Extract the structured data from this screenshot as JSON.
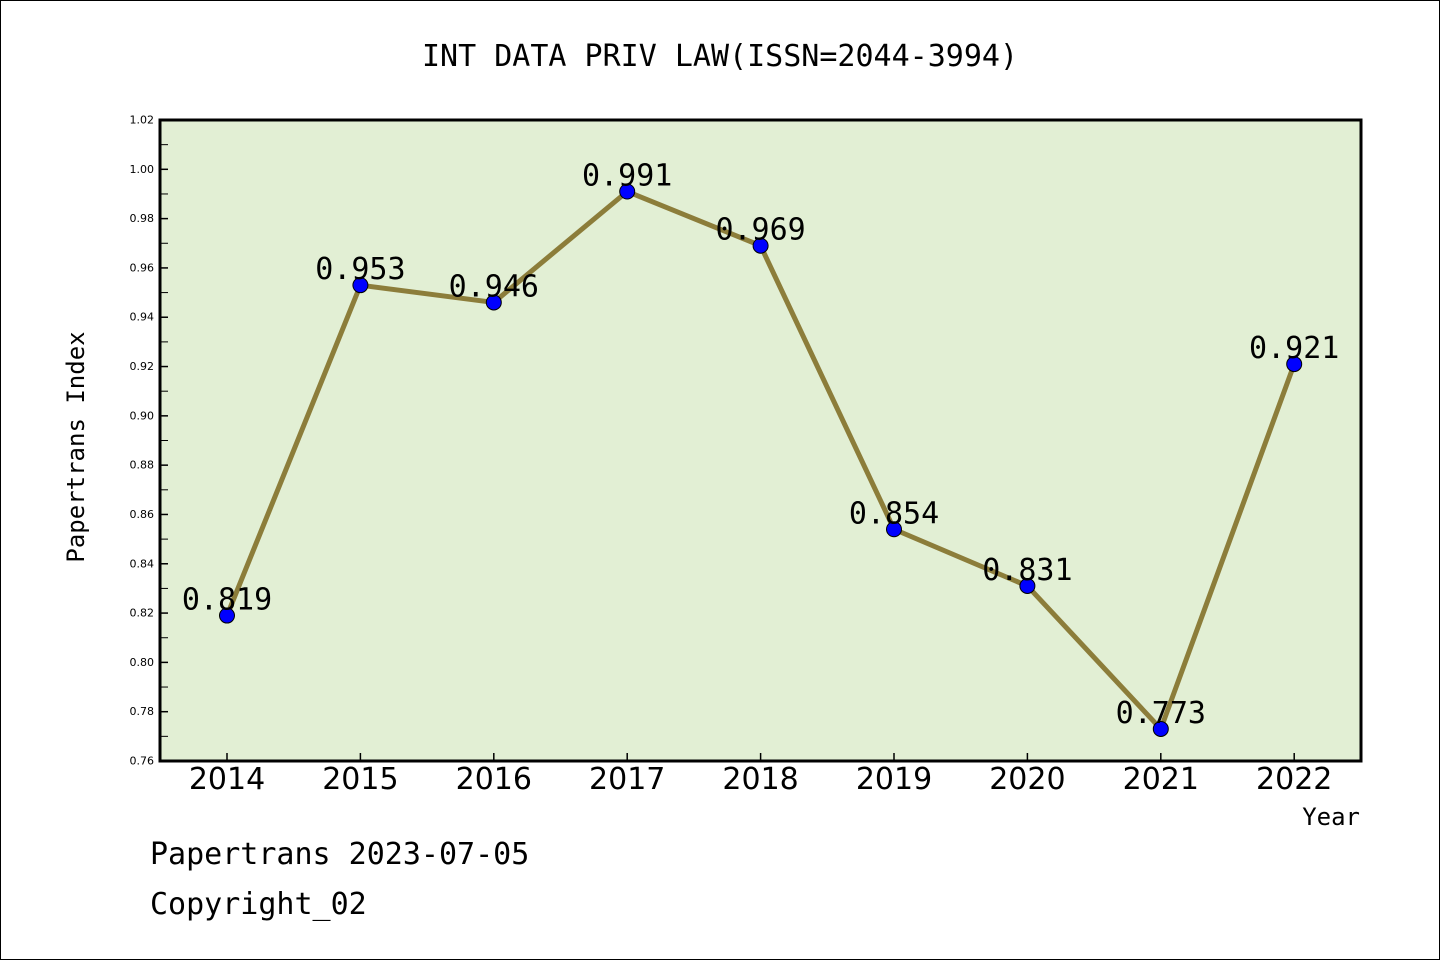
{
  "chart_data": {
    "type": "line",
    "title": "INT DATA PRIV LAW(ISSN=2044-3994)",
    "xlabel": "Year",
    "ylabel": "Papertrans Index",
    "categories": [
      "2014",
      "2015",
      "2016",
      "2017",
      "2018",
      "2019",
      "2020",
      "2021",
      "2022"
    ],
    "values": [
      0.819,
      0.953,
      0.946,
      0.991,
      0.969,
      0.854,
      0.831,
      0.773,
      0.921
    ],
    "data_labels": [
      "0.819",
      "0.953",
      "0.946",
      "0.991",
      "0.969",
      "0.854",
      "0.831",
      "0.773",
      "0.921"
    ],
    "ylim": [
      0.76,
      1.02
    ],
    "yticks": [
      "0.76",
      "0.78",
      "0.80",
      "0.82",
      "0.84",
      "0.86",
      "0.88",
      "0.90",
      "0.92",
      "0.94",
      "0.96",
      "0.98",
      "1.00",
      "1.02"
    ],
    "grid": false,
    "colors": {
      "line": "#8c7d3a",
      "marker": "#0000ff",
      "plot_background": "#e2efd4"
    }
  },
  "footer": {
    "date_text": "Papertrans 2023-07-05",
    "copyright_text": "Copyright_02"
  }
}
